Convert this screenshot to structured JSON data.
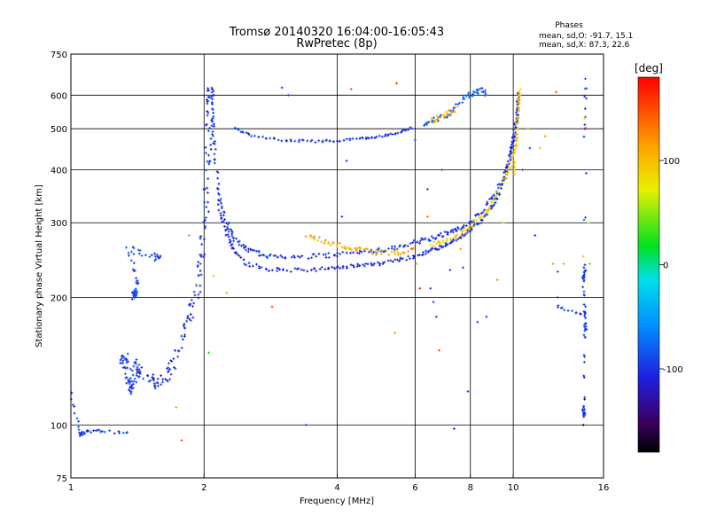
{
  "chart_data": {
    "type": "scatter",
    "title": "Tromsø 20140320 16:04:00-16:05:43",
    "subtitle": "RwPretec (8p)",
    "xlabel": "Frequency [MHz]",
    "ylabel": "Stationary phase Virtual Height [km]",
    "x_scale": "log",
    "y_scale": "log",
    "xlim": [
      1,
      16
    ],
    "ylim": [
      75,
      750
    ],
    "x_ticks": [
      1,
      2,
      4,
      6,
      8,
      10,
      16
    ],
    "y_ticks": [
      75,
      100,
      200,
      300,
      400,
      500,
      600,
      750
    ],
    "grid": true,
    "stats": {
      "heading": "Phases",
      "line_o": "mean, sd,O: -91.7, 15.1",
      "line_x": "mean, sd,X: 87.3, 22.6"
    },
    "colorbar": {
      "label": "[deg]",
      "range": [
        -180,
        180
      ],
      "ticks": [
        100,
        0,
        -100
      ]
    },
    "traces": [
      {
        "points": [
          [
            1.0,
            118
          ],
          [
            1.05,
            95
          ],
          [
            1.07,
            96
          ],
          [
            1.17,
            97
          ],
          [
            1.37,
            95
          ]
        ],
        "phase": -95,
        "spread": 0.02
      },
      {
        "points": [
          [
            1.3,
            140
          ],
          [
            1.33,
            145
          ],
          [
            1.35,
            130
          ],
          [
            1.36,
            120
          ],
          [
            1.38,
            125
          ],
          [
            1.4,
            140
          ],
          [
            1.42,
            135
          ],
          [
            1.45,
            130
          ]
        ],
        "phase": -95,
        "spread": 0.05
      },
      {
        "points": [
          [
            1.38,
            200
          ],
          [
            1.4,
            205
          ],
          [
            1.42,
            215
          ],
          [
            1.35,
            260
          ],
          [
            1.52,
            250
          ],
          [
            1.6,
            245
          ]
        ],
        "phase": -90,
        "spread": 0.04
      },
      {
        "points": [
          [
            1.5,
            130
          ],
          [
            1.55,
            125
          ],
          [
            1.62,
            128
          ],
          [
            1.68,
            135
          ],
          [
            1.75,
            150
          ],
          [
            1.82,
            170
          ],
          [
            1.88,
            190
          ],
          [
            1.93,
            210
          ],
          [
            1.97,
            240
          ],
          [
            2.0,
            280
          ],
          [
            2.02,
            340
          ],
          [
            2.03,
            420
          ],
          [
            2.05,
            500
          ],
          [
            2.06,
            560
          ],
          [
            2.07,
            600
          ],
          [
            2.08,
            615
          ]
        ],
        "phase": -100,
        "spread": 0.06
      },
      {
        "points": [
          [
            2.08,
            590
          ],
          [
            2.1,
            480
          ],
          [
            2.13,
            400
          ],
          [
            2.17,
            340
          ],
          [
            2.25,
            300
          ],
          [
            2.35,
            275
          ],
          [
            2.5,
            260
          ],
          [
            2.7,
            252
          ],
          [
            3.0,
            248
          ],
          [
            3.5,
            250
          ],
          [
            4.0,
            252
          ],
          [
            4.5,
            255
          ],
          [
            5.0,
            258
          ],
          [
            5.5,
            262
          ],
          [
            6.0,
            270
          ],
          [
            6.5,
            275
          ],
          [
            7.0,
            282
          ],
          [
            7.5,
            290
          ],
          [
            8.0,
            300
          ],
          [
            8.5,
            320
          ],
          [
            9.0,
            345
          ],
          [
            9.5,
            380
          ],
          [
            9.8,
            420
          ],
          [
            10.0,
            470
          ],
          [
            10.2,
            540
          ],
          [
            10.3,
            600
          ]
        ],
        "phase": -100,
        "spread": 0.025
      },
      {
        "points": [
          [
            2.15,
            330
          ],
          [
            2.25,
            280
          ],
          [
            2.35,
            255
          ],
          [
            2.5,
            240
          ],
          [
            2.8,
            233
          ],
          [
            3.2,
            232
          ],
          [
            3.6,
            233
          ],
          [
            4.0,
            235
          ],
          [
            4.5,
            238
          ],
          [
            5.0,
            240
          ],
          [
            5.5,
            245
          ],
          [
            6.0,
            250
          ],
          [
            6.5,
            258
          ],
          [
            7.0,
            265
          ],
          [
            7.5,
            275
          ],
          [
            8.0,
            288
          ],
          [
            8.5,
            305
          ],
          [
            9.0,
            330
          ],
          [
            9.3,
            355
          ],
          [
            9.6,
            390
          ],
          [
            9.9,
            440
          ],
          [
            10.1,
            500
          ],
          [
            10.25,
            560
          ],
          [
            10.3,
            620
          ]
        ],
        "phase": -105,
        "spread": 0.02
      },
      {
        "points": [
          [
            3.4,
            280
          ],
          [
            3.8,
            270
          ],
          [
            4.2,
            262
          ],
          [
            4.6,
            258
          ],
          [
            5.0,
            255
          ],
          [
            5.5,
            255
          ],
          [
            6.0,
            258
          ]
        ],
        "phase": 110,
        "spread": 0.03
      },
      {
        "points": [
          [
            6.5,
            265
          ],
          [
            7.0,
            272
          ],
          [
            7.5,
            280
          ],
          [
            8.0,
            292
          ],
          [
            8.5,
            310
          ],
          [
            9.0,
            335
          ],
          [
            9.5,
            370
          ],
          [
            9.9,
            420
          ],
          [
            10.2,
            480
          ]
        ],
        "phase": 85,
        "spread": 0.03
      },
      {
        "points": [
          [
            2.35,
            500
          ],
          [
            2.6,
            480
          ],
          [
            3.0,
            470
          ],
          [
            3.5,
            467
          ],
          [
            4.0,
            468
          ],
          [
            4.5,
            473
          ],
          [
            5.0,
            480
          ],
          [
            5.5,
            490
          ],
          [
            6.0,
            505
          ]
        ],
        "phase": -100,
        "spread": 0.012
      },
      {
        "points": [
          [
            6.3,
            510
          ],
          [
            6.7,
            525
          ],
          [
            7.2,
            545
          ],
          [
            7.5,
            570
          ],
          [
            8.0,
            600
          ],
          [
            8.4,
            620
          ],
          [
            8.8,
            600
          ]
        ],
        "phase": -80,
        "spread": 0.03
      },
      {
        "points": [
          [
            6.5,
            520
          ],
          [
            7.0,
            540
          ],
          [
            7.5,
            560
          ]
        ],
        "phase": 110,
        "spread": 0.03
      },
      {
        "points": [
          [
            10.05,
            390
          ],
          [
            10.1,
            450
          ],
          [
            10.2,
            520
          ],
          [
            10.3,
            580
          ],
          [
            10.35,
            620
          ]
        ],
        "phase": 95,
        "spread": 0.02
      },
      {
        "points": [
          [
            12.6,
            190
          ],
          [
            14.5,
            180
          ],
          [
            14.6,
            160
          ],
          [
            14.4,
            220
          ],
          [
            14.5,
            230
          ],
          [
            14.5,
            104
          ],
          [
            14.4,
            110
          ],
          [
            14.6,
            660
          ],
          [
            14.5,
            450
          ]
        ],
        "phase": -95,
        "spread": 0.02
      }
    ],
    "scattered": [
      [
        1.73,
        110,
        40
      ],
      [
        1.78,
        92,
        150
      ],
      [
        1.85,
        280,
        -5
      ],
      [
        1.92,
        215,
        60
      ],
      [
        2.05,
        148,
        20
      ],
      [
        2.1,
        225,
        55
      ],
      [
        2.25,
        205,
        45
      ],
      [
        2.85,
        190,
        150
      ],
      [
        3.0,
        625,
        -95
      ],
      [
        3.1,
        600,
        -95
      ],
      [
        3.4,
        100,
        -90
      ],
      [
        4.1,
        310,
        -95
      ],
      [
        4.2,
        420,
        -95
      ],
      [
        4.3,
        620,
        150
      ],
      [
        5.4,
        165,
        120
      ],
      [
        5.45,
        640,
        160
      ],
      [
        5.9,
        260,
        150
      ],
      [
        6.0,
        470,
        -95
      ],
      [
        6.05,
        240,
        110
      ],
      [
        6.15,
        210,
        170
      ],
      [
        6.4,
        360,
        -90
      ],
      [
        6.4,
        310,
        140
      ],
      [
        6.5,
        210,
        -95
      ],
      [
        6.6,
        195,
        -95
      ],
      [
        6.7,
        180,
        -95
      ],
      [
        6.8,
        150,
        150
      ],
      [
        6.9,
        400,
        -95
      ],
      [
        7.2,
        232,
        -95
      ],
      [
        7.35,
        98,
        -120
      ],
      [
        7.6,
        260,
        120
      ],
      [
        7.7,
        235,
        -95
      ],
      [
        7.9,
        120,
        -95
      ],
      [
        8.3,
        175,
        -95
      ],
      [
        8.7,
        180,
        -95
      ],
      [
        9.2,
        220,
        130
      ],
      [
        9.5,
        300,
        60
      ],
      [
        10.5,
        400,
        -95
      ],
      [
        11.2,
        280,
        -95
      ],
      [
        11.5,
        450,
        100
      ],
      [
        12.3,
        240,
        120
      ],
      [
        12.5,
        610,
        150
      ],
      [
        12.6,
        230,
        -95
      ],
      [
        12.6,
        200,
        -95
      ],
      [
        13.0,
        240,
        120
      ],
      [
        14.4,
        100,
        -170
      ],
      [
        14.6,
        500,
        160
      ],
      [
        14.5,
        530,
        100
      ],
      [
        14.8,
        300,
        60
      ],
      [
        14.9,
        240,
        40
      ],
      [
        10.8,
        500,
        40
      ],
      [
        10.9,
        450,
        -95
      ],
      [
        11.8,
        480,
        120
      ],
      [
        14.4,
        250,
        100
      ],
      [
        14.5,
        115,
        -160
      ]
    ]
  }
}
